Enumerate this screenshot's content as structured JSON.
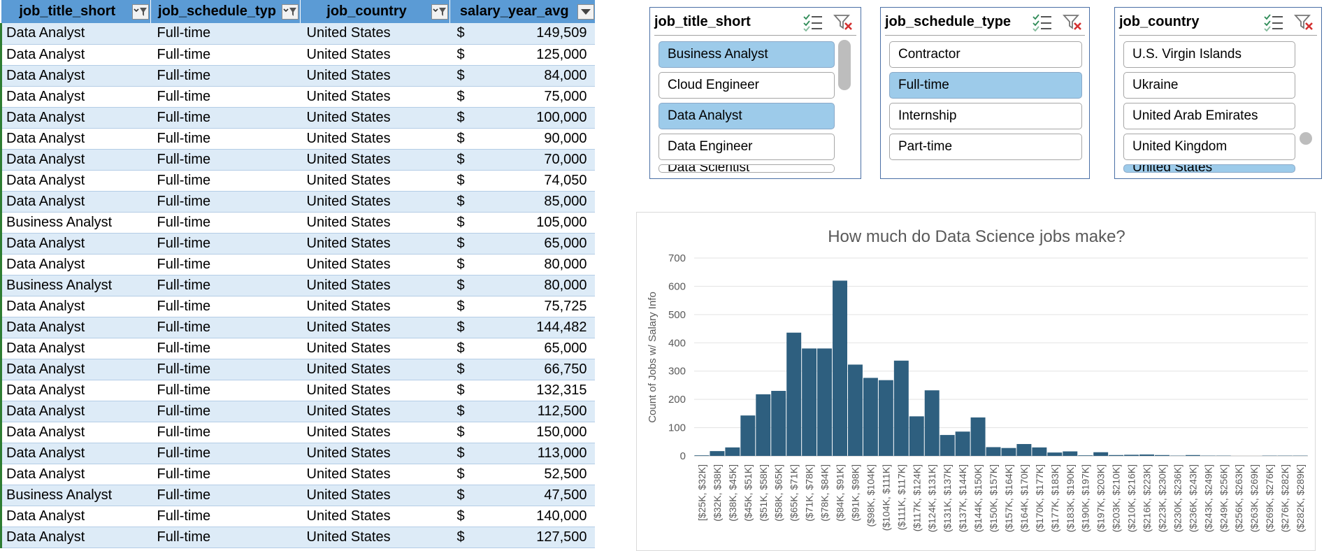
{
  "table": {
    "headers": [
      "job_title_short",
      "job_schedule_typ",
      "job_country",
      "salary_year_avg"
    ],
    "currency_symbol": "$",
    "rows": [
      [
        "Data Analyst",
        "Full-time",
        "United States",
        "149,509"
      ],
      [
        "Data Analyst",
        "Full-time",
        "United States",
        "125,000"
      ],
      [
        "Data Analyst",
        "Full-time",
        "United States",
        "84,000"
      ],
      [
        "Data Analyst",
        "Full-time",
        "United States",
        "75,000"
      ],
      [
        "Data Analyst",
        "Full-time",
        "United States",
        "100,000"
      ],
      [
        "Data Analyst",
        "Full-time",
        "United States",
        "90,000"
      ],
      [
        "Data Analyst",
        "Full-time",
        "United States",
        "70,000"
      ],
      [
        "Data Analyst",
        "Full-time",
        "United States",
        "74,050"
      ],
      [
        "Data Analyst",
        "Full-time",
        "United States",
        "85,000"
      ],
      [
        "Business Analyst",
        "Full-time",
        "United States",
        "105,000"
      ],
      [
        "Data Analyst",
        "Full-time",
        "United States",
        "65,000"
      ],
      [
        "Data Analyst",
        "Full-time",
        "United States",
        "80,000"
      ],
      [
        "Business Analyst",
        "Full-time",
        "United States",
        "80,000"
      ],
      [
        "Data Analyst",
        "Full-time",
        "United States",
        "75,725"
      ],
      [
        "Data Analyst",
        "Full-time",
        "United States",
        "144,482"
      ],
      [
        "Data Analyst",
        "Full-time",
        "United States",
        "65,000"
      ],
      [
        "Data Analyst",
        "Full-time",
        "United States",
        "66,750"
      ],
      [
        "Data Analyst",
        "Full-time",
        "United States",
        "132,315"
      ],
      [
        "Data Analyst",
        "Full-time",
        "United States",
        "112,500"
      ],
      [
        "Data Analyst",
        "Full-time",
        "United States",
        "150,000"
      ],
      [
        "Data Analyst",
        "Full-time",
        "United States",
        "113,000"
      ],
      [
        "Data Analyst",
        "Full-time",
        "United States",
        "52,500"
      ],
      [
        "Business Analyst",
        "Full-time",
        "United States",
        "47,500"
      ],
      [
        "Data Analyst",
        "Full-time",
        "United States",
        "140,000"
      ],
      [
        "Data Analyst",
        "Full-time",
        "United States",
        "127,500"
      ]
    ]
  },
  "slicers": {
    "job_title": {
      "title": "job_title_short",
      "items": [
        {
          "label": "Business Analyst",
          "selected": true
        },
        {
          "label": "Cloud Engineer",
          "selected": false
        },
        {
          "label": "Data Analyst",
          "selected": true
        },
        {
          "label": "Data Engineer",
          "selected": false
        },
        {
          "label": "Data Scientist",
          "selected": false
        }
      ]
    },
    "job_schedule": {
      "title": "job_schedule_type",
      "items": [
        {
          "label": "Contractor",
          "selected": false
        },
        {
          "label": "Full-time",
          "selected": true
        },
        {
          "label": "Internship",
          "selected": false
        },
        {
          "label": "Part-time",
          "selected": false
        }
      ]
    },
    "job_country": {
      "title": "job_country",
      "items": [
        {
          "label": "U.S. Virgin Islands",
          "selected": false
        },
        {
          "label": "Ukraine",
          "selected": false
        },
        {
          "label": "United Arab Emirates",
          "selected": false
        },
        {
          "label": "United Kingdom",
          "selected": false
        },
        {
          "label": "United States",
          "selected": true
        }
      ]
    },
    "icons": {
      "multi_select": "multi-select-icon",
      "clear_filter": "clear-filter-icon"
    }
  },
  "colors": {
    "bar": "#2e5f7f",
    "header": "#5b9bd5",
    "band": "#ddebf7",
    "slicer_selected": "#9dcbea"
  },
  "chart_data": {
    "type": "bar",
    "title": "How much do Data Science jobs make?",
    "xlabel": "",
    "ylabel": "Count of Jobs w/ Salary Info",
    "ylim": [
      0,
      700
    ],
    "yticks": [
      0,
      100,
      200,
      300,
      400,
      500,
      600,
      700
    ],
    "grid": true,
    "categories": [
      "[$25K, $32K]",
      "($32K, $38K]",
      "($38K, $45K]",
      "($45K, $51K]",
      "($51K, $58K]",
      "($58K, $65K]",
      "($65K, $71K]",
      "($71K, $78K]",
      "($78K, $84K]",
      "($84K, $91K]",
      "($91K, $98K]",
      "($98K, $104K]",
      "($104K, $111K]",
      "($111K, $117K]",
      "($117K, $124K]",
      "($124K, $131K]",
      "($131K, $137K]",
      "($137K, $144K]",
      "($144K, $150K]",
      "($150K, $157K]",
      "($157K, $164K]",
      "($164K, $170K]",
      "($170K, $177K]",
      "($177K, $183K]",
      "($183K, $190K]",
      "($190K, $197K]",
      "($197K, $203K]",
      "($203K, $210K]",
      "($210K, $216K]",
      "($216K, $223K]",
      "($223K, $230K]",
      "($230K, $236K]",
      "($236K, $243K]",
      "($243K, $249K]",
      "($249K, $256K]",
      "($256K, $263K]",
      "($263K, $269K]",
      "($269K, $276K]",
      "($276K, $282K]",
      "($282K, $289K]"
    ],
    "values": [
      2,
      17,
      30,
      143,
      218,
      230,
      436,
      380,
      380,
      620,
      323,
      276,
      268,
      337,
      140,
      232,
      74,
      86,
      136,
      31,
      28,
      42,
      30,
      12,
      16,
      2,
      13,
      3,
      4,
      5,
      3,
      1,
      3,
      1,
      1,
      0,
      0,
      1,
      1,
      1
    ]
  }
}
